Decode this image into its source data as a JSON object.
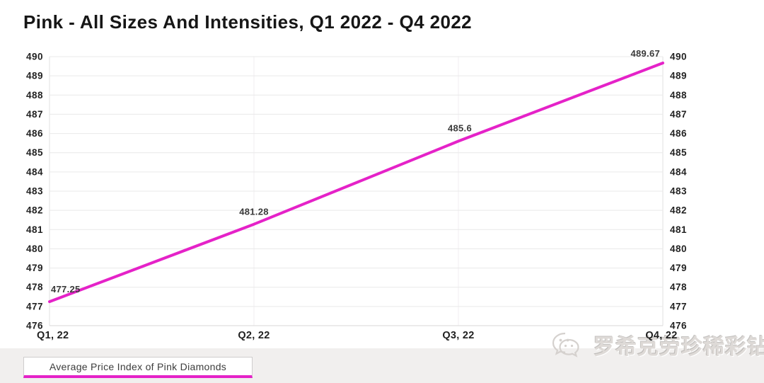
{
  "chart_data": {
    "type": "line",
    "title": "Pink - All Sizes And Intensities, Q1 2022 - Q4 2022",
    "categories": [
      "Q1, 22",
      "Q2, 22",
      "Q3, 22",
      "Q4, 22"
    ],
    "series": [
      {
        "name": "Average Price Index of Pink Diamonds",
        "values": [
          477.25,
          481.28,
          485.6,
          489.67
        ]
      }
    ],
    "data_labels": [
      "477.25",
      "481.28",
      "485.6",
      "489.67"
    ],
    "xlabel": "",
    "ylabel": "",
    "ylim": [
      476,
      490
    ],
    "y_ticks": [
      476,
      477,
      478,
      479,
      480,
      481,
      482,
      483,
      484,
      485,
      486,
      487,
      488,
      489,
      490
    ],
    "y_axis_sides": [
      "left",
      "right"
    ],
    "grid": true,
    "line_color": "#e522c8",
    "grid_color": "#e9e9e9",
    "axis_border_color": "#e2e0e0",
    "tick_label_color": "#222222",
    "legend_position": "bottom-left"
  },
  "legend": {
    "label": "Average Price Index of Pink Diamonds"
  },
  "watermark": {
    "icon": "wechat-icon",
    "text": "罗希克劳珍稀彩钻"
  }
}
